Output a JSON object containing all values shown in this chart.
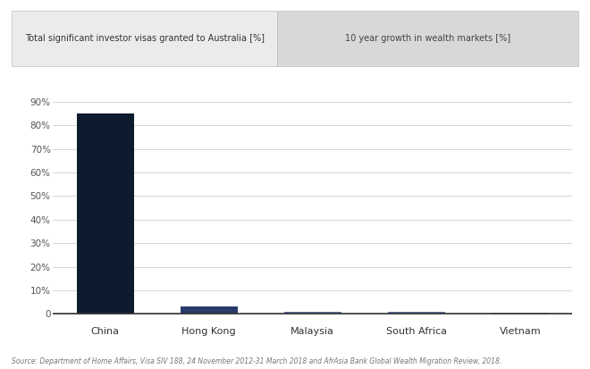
{
  "categories": [
    "China",
    "Hong Kong",
    "Malaysia",
    "South Africa",
    "Vietnam"
  ],
  "visa_values": [
    85,
    3,
    1,
    1,
    0.5
  ],
  "bar_colors": [
    "#0d1b2e",
    "#2b3a6b",
    "#5b6fa0",
    "#5b6fa0",
    "#8fa8c8"
  ],
  "legend_label_1": "Total significant investor visas granted to Australia [%]",
  "legend_label_2": "10 year growth in wealth markets [%]",
  "ytick_values": [
    0,
    10,
    20,
    30,
    40,
    50,
    60,
    70,
    80,
    90
  ],
  "ytick_labels": [
    "0",
    "10%",
    "20%",
    "30%",
    "40%",
    "50%",
    "60%",
    "70%",
    "80%",
    "90%"
  ],
  "ylim": [
    -3,
    94
  ],
  "source_text": "Source: Department of Home Affairs, Visa SIV 188, 24 November 2012-31 March 2018 and AfrAsia Bank Global Wealth Migration Review, 2018.",
  "background_color": "#ffffff",
  "grid_color": "#d0d0d0",
  "bar_width": 0.55,
  "legend_bg_left": "#ebebeb",
  "legend_bg_right": "#d8d8d8"
}
